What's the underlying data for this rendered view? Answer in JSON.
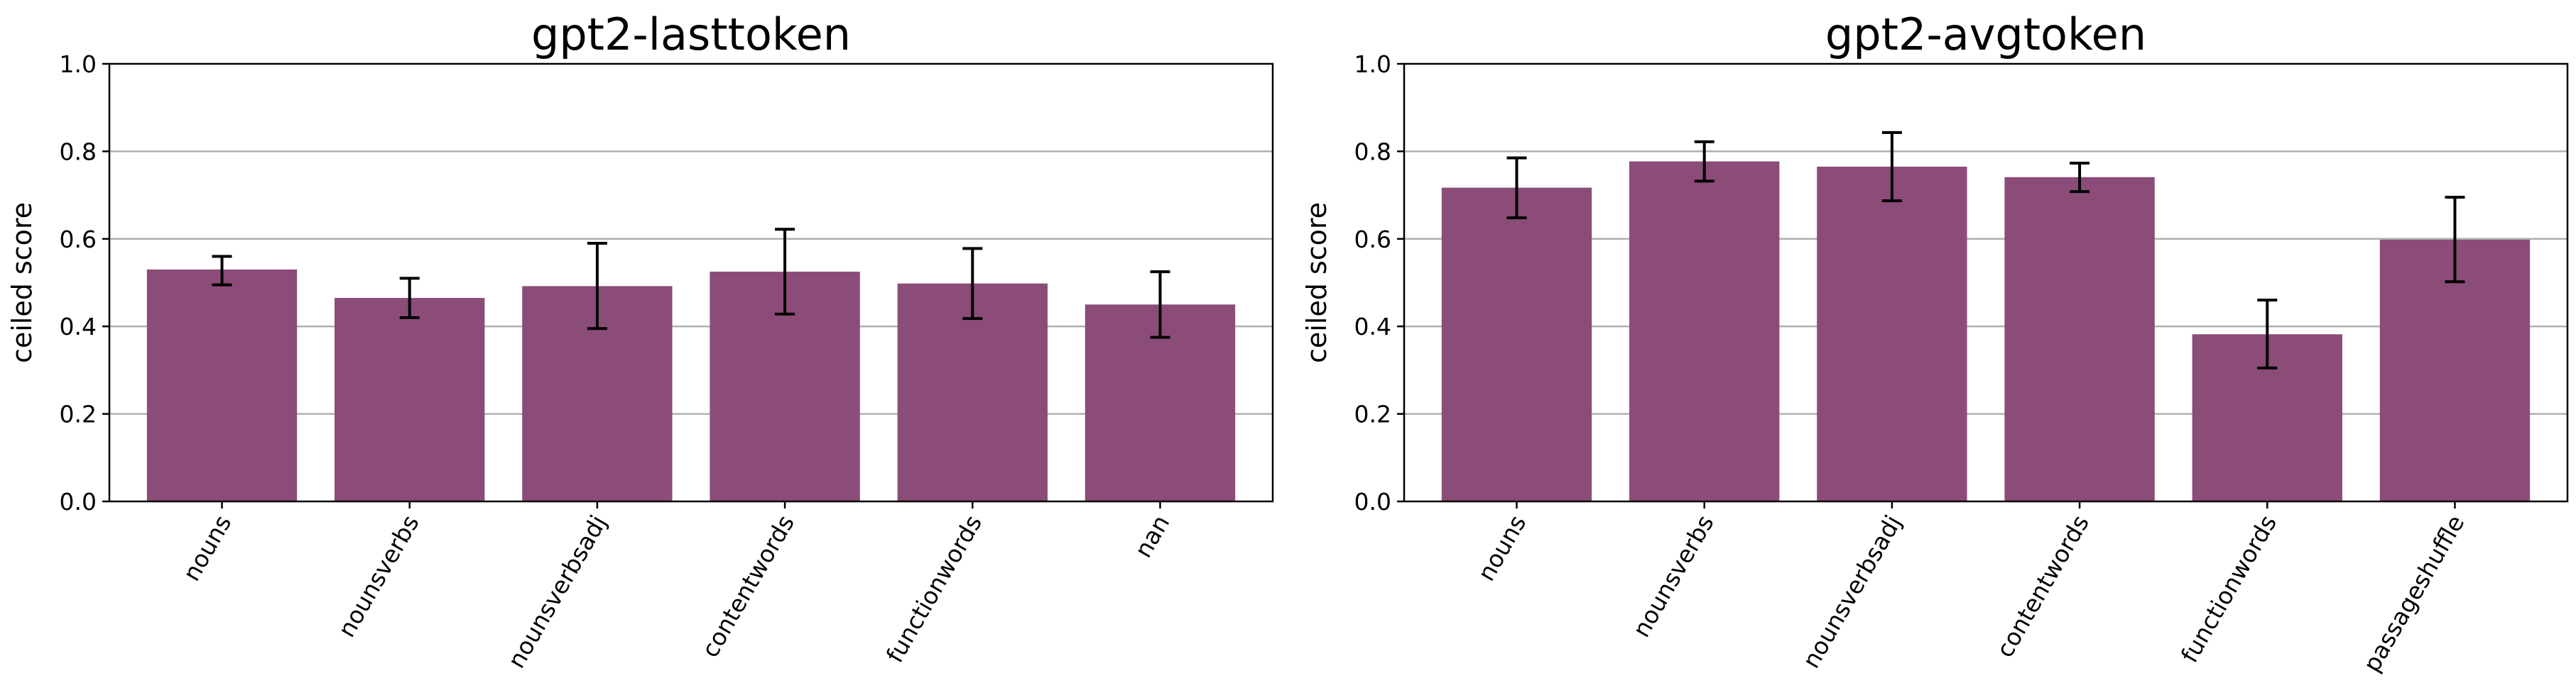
{
  "chart_data": [
    {
      "type": "bar",
      "title": "gpt2-lasttoken",
      "ylabel": "ceiled score",
      "ylim": [
        0,
        1.0
      ],
      "yticks": [
        "0.0",
        "0.2",
        "0.4",
        "0.6",
        "0.8",
        "1.0"
      ],
      "grid": "horizontal",
      "color": "#8b4c78",
      "categories": [
        "nouns",
        "nounsverbs",
        "nounsverbsadj",
        "contentwords",
        "functionwords",
        "nan"
      ],
      "values": [
        0.53,
        0.465,
        0.492,
        0.525,
        0.498,
        0.45
      ],
      "err_low": [
        0.495,
        0.42,
        0.395,
        0.428,
        0.418,
        0.375
      ],
      "err_high": [
        0.56,
        0.51,
        0.59,
        0.622,
        0.578,
        0.525
      ]
    },
    {
      "type": "bar",
      "title": "gpt2-avgtoken",
      "ylabel": "ceiled score",
      "ylim": [
        0,
        1.0
      ],
      "yticks": [
        "0.0",
        "0.2",
        "0.4",
        "0.6",
        "0.8",
        "1.0"
      ],
      "grid": "horizontal",
      "color": "#8b4c78",
      "categories": [
        "nouns",
        "nounsverbs",
        "nounsverbsadj",
        "contentwords",
        "functionwords",
        "passageshuffle"
      ],
      "values": [
        0.717,
        0.777,
        0.765,
        0.741,
        0.382,
        0.598
      ],
      "err_low": [
        0.648,
        0.732,
        0.687,
        0.708,
        0.305,
        0.502
      ],
      "err_high": [
        0.785,
        0.822,
        0.843,
        0.773,
        0.46,
        0.695
      ]
    }
  ]
}
